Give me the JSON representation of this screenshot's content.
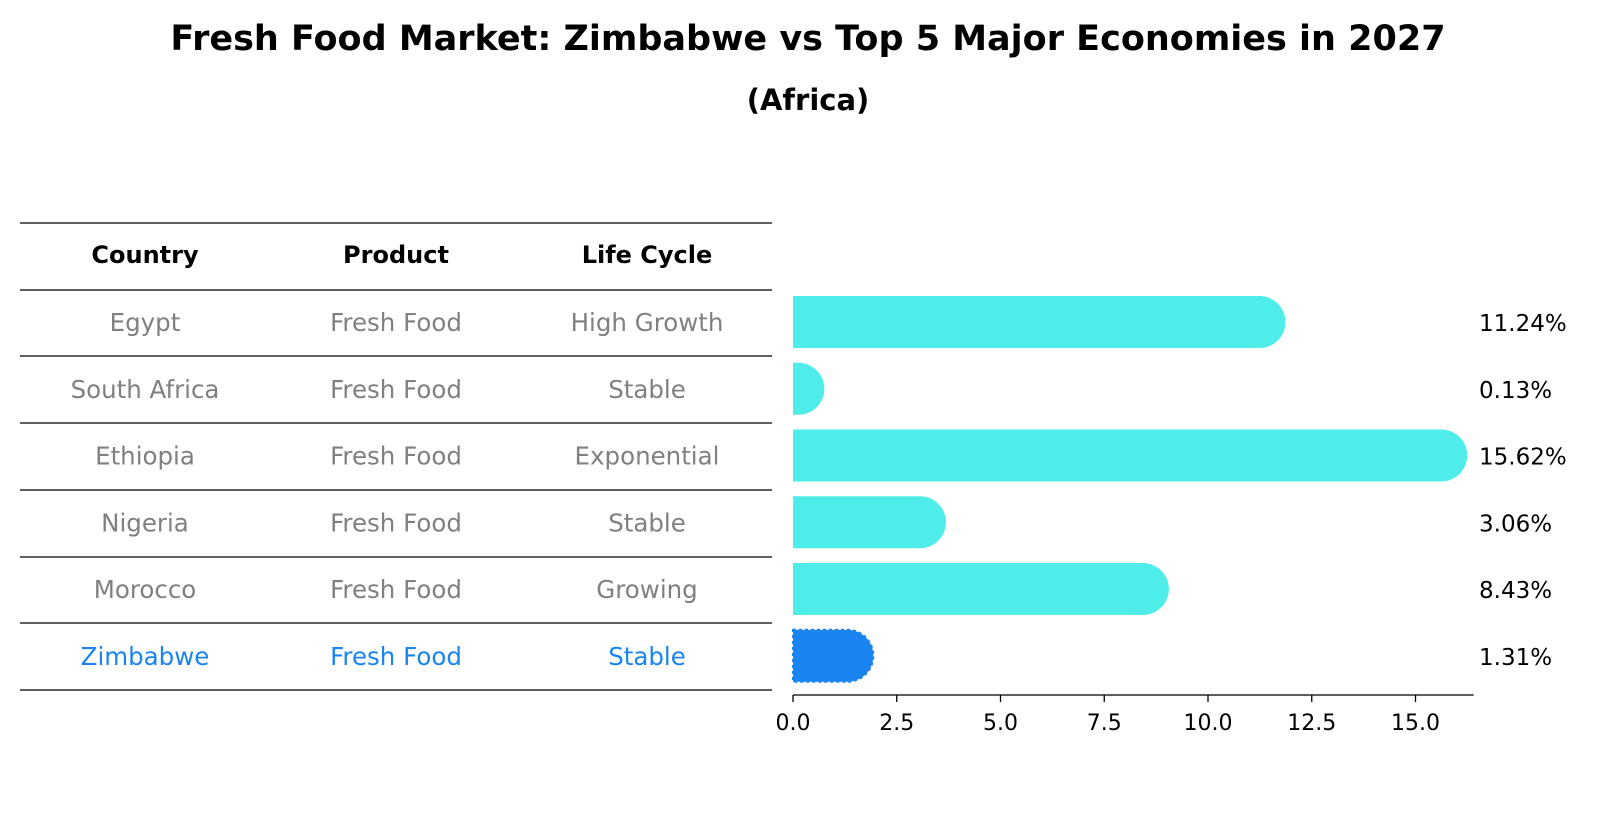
{
  "title": "Fresh Food Market: Zimbabwe vs Top 5 Major Economies in 2027",
  "subtitle": "(Africa)",
  "table": {
    "headers": [
      "Country",
      "Product",
      "Life Cycle"
    ],
    "rows": [
      {
        "country": "Egypt",
        "product": "Fresh Food",
        "life_cycle": "High Growth"
      },
      {
        "country": "South Africa",
        "product": "Fresh Food",
        "life_cycle": "Stable"
      },
      {
        "country": "Ethiopia",
        "product": "Fresh Food",
        "life_cycle": "Exponential"
      },
      {
        "country": "Nigeria",
        "product": "Fresh Food",
        "life_cycle": "Stable"
      },
      {
        "country": "Morocco",
        "product": "Fresh Food",
        "life_cycle": "Growing"
      },
      {
        "country": "Zimbabwe",
        "product": "Fresh Food",
        "life_cycle": "Stable"
      }
    ]
  },
  "colors": {
    "bar": "#4EEDEA",
    "highlight": "#1A85F0",
    "muted_text": "#808080"
  },
  "chart_data": {
    "type": "bar",
    "orientation": "horizontal",
    "categories": [
      "Egypt",
      "South Africa",
      "Ethiopia",
      "Nigeria",
      "Morocco",
      "Zimbabwe"
    ],
    "values": [
      11.24,
      0.13,
      15.62,
      3.06,
      8.43,
      1.31
    ],
    "value_labels": [
      "11.24%",
      "0.13%",
      "15.62%",
      "3.06%",
      "8.43%",
      "1.31%"
    ],
    "highlight": "Zimbabwe",
    "xlim": [
      0,
      16.4
    ],
    "xticks": [
      0,
      2.5,
      5,
      7.5,
      10,
      12.5,
      15
    ],
    "xtick_labels": [
      "0.0",
      "2.5",
      "5.0",
      "7.5",
      "10.0",
      "12.5",
      "15.0"
    ],
    "grid": false,
    "legend": "none"
  }
}
